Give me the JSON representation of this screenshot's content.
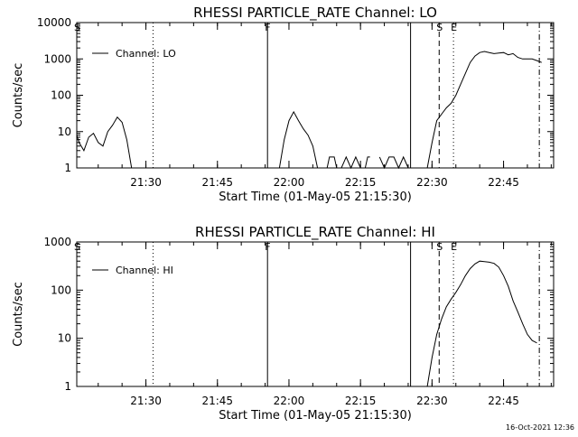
{
  "chart_data": [
    {
      "type": "line",
      "title": "RHESSI PARTICLE_RATE Channel: LO",
      "xlabel": "Start Time (01-May-05 21:15:30)",
      "ylabel": "Counts/sec",
      "y_scale": "log",
      "ylim": [
        1,
        10000
      ],
      "yticks": [
        1,
        10,
        100,
        1000,
        10000
      ],
      "ytick_labels": [
        "1",
        "10",
        "100",
        "1000",
        "10000"
      ],
      "xlim": [
        "21:15:30",
        "22:55:30"
      ],
      "xticks": [
        "21:30",
        "21:45",
        "22:00",
        "22:15",
        "22:30",
        "22:45"
      ],
      "grid": false,
      "legend": "top-left",
      "series": [
        {
          "name": "Channel: LO",
          "color": "#000000",
          "segments": [
            [
              [
                "21:15:30",
                8
              ],
              [
                "21:16:00",
                5
              ],
              [
                "21:17:00",
                3
              ],
              [
                "21:18:00",
                7
              ],
              [
                "21:19:00",
                9
              ],
              [
                "21:20:00",
                5
              ],
              [
                "21:21:00",
                4
              ],
              [
                "21:22:00",
                10
              ],
              [
                "21:23:00",
                15
              ],
              [
                "21:24:00",
                25
              ],
              [
                "21:25:00",
                18
              ],
              [
                "21:26:00",
                6
              ],
              [
                "21:27:00",
                1
              ]
            ],
            [
              [
                "21:58:00",
                1
              ],
              [
                "21:59:00",
                6
              ],
              [
                "22:00:00",
                20
              ],
              [
                "22:01:00",
                35
              ],
              [
                "22:02:00",
                20
              ],
              [
                "22:03:00",
                12
              ],
              [
                "22:04:00",
                8
              ],
              [
                "22:05:00",
                4
              ],
              [
                "22:06:00",
                1
              ]
            ],
            [
              [
                "22:08:00",
                1
              ],
              [
                "22:08:30",
                2
              ],
              [
                "22:09:30",
                2
              ],
              [
                "22:10:00",
                1
              ],
              [
                "22:11:00",
                1
              ],
              [
                "22:12:00",
                2
              ],
              [
                "22:13:00",
                1
              ],
              [
                "22:14:00",
                2
              ],
              [
                "22:15:00",
                1
              ],
              [
                "22:16:00",
                1
              ],
              [
                "22:16:30",
                2
              ],
              [
                "22:17:00",
                2
              ]
            ],
            [
              [
                "22:19:00",
                2
              ],
              [
                "22:20:00",
                1
              ],
              [
                "22:21:00",
                2
              ],
              [
                "22:22:00",
                2
              ],
              [
                "22:23:00",
                1
              ],
              [
                "22:24:00",
                2
              ],
              [
                "22:25:00",
                1
              ]
            ],
            [
              [
                "22:29:00",
                1
              ],
              [
                "22:30:00",
                5
              ],
              [
                "22:31:00",
                20
              ],
              [
                "22:32:00",
                30
              ],
              [
                "22:33:00",
                45
              ],
              [
                "22:34:00",
                60
              ],
              [
                "22:35:00",
                100
              ],
              [
                "22:36:00",
                200
              ],
              [
                "22:37:00",
                400
              ],
              [
                "22:38:00",
                800
              ],
              [
                "22:39:00",
                1200
              ],
              [
                "22:40:00",
                1500
              ],
              [
                "22:41:00",
                1600
              ],
              [
                "22:42:00",
                1500
              ],
              [
                "22:43:00",
                1400
              ],
              [
                "22:44:00",
                1450
              ],
              [
                "22:45:00",
                1500
              ],
              [
                "22:46:00",
                1300
              ],
              [
                "22:47:00",
                1400
              ],
              [
                "22:48:00",
                1100
              ],
              [
                "22:49:00",
                1000
              ],
              [
                "22:50:00",
                1000
              ],
              [
                "22:51:00",
                1000
              ],
              [
                "22:52:00",
                900
              ],
              [
                "22:53:00",
                800
              ]
            ]
          ]
        }
      ],
      "markers": [
        {
          "label": "S",
          "time": "21:15:30",
          "style": "solid"
        },
        {
          "label": "",
          "time": "21:31:30",
          "style": "dotted"
        },
        {
          "label": "F",
          "time": "21:55:30",
          "style": "solid"
        },
        {
          "label": "",
          "time": "22:25:30",
          "style": "solid"
        },
        {
          "label": "S",
          "time": "22:31:30",
          "style": "dashed"
        },
        {
          "label": "E",
          "time": "22:34:30",
          "style": "dotted"
        },
        {
          "label": "",
          "time": "22:52:30",
          "style": "dashdot"
        }
      ]
    },
    {
      "type": "line",
      "title": "RHESSI PARTICLE_RATE Channel: HI",
      "xlabel": "Start Time (01-May-05 21:15:30)",
      "ylabel": "Counts/sec",
      "y_scale": "log",
      "ylim": [
        1,
        1000
      ],
      "yticks": [
        1,
        10,
        100,
        1000
      ],
      "ytick_labels": [
        "1",
        "10",
        "100",
        "1000"
      ],
      "xlim": [
        "21:15:30",
        "22:55:30"
      ],
      "xticks": [
        "21:30",
        "21:45",
        "22:00",
        "22:15",
        "22:30",
        "22:45"
      ],
      "grid": false,
      "legend": "top-left",
      "series": [
        {
          "name": "Channel: HI",
          "color": "#000000",
          "segments": [
            [
              [
                "22:29:00",
                1
              ],
              [
                "22:30:00",
                4
              ],
              [
                "22:31:00",
                12
              ],
              [
                "22:32:00",
                25
              ],
              [
                "22:33:00",
                45
              ],
              [
                "22:34:00",
                65
              ],
              [
                "22:35:00",
                90
              ],
              [
                "22:36:00",
                130
              ],
              [
                "22:37:00",
                200
              ],
              [
                "22:38:00",
                280
              ],
              [
                "22:39:00",
                350
              ],
              [
                "22:40:00",
                400
              ],
              [
                "22:41:00",
                390
              ],
              [
                "22:42:00",
                380
              ],
              [
                "22:43:00",
                360
              ],
              [
                "22:44:00",
                300
              ],
              [
                "22:45:00",
                200
              ],
              [
                "22:46:00",
                120
              ],
              [
                "22:47:00",
                60
              ],
              [
                "22:48:00",
                35
              ],
              [
                "22:49:00",
                20
              ],
              [
                "22:50:00",
                12
              ],
              [
                "22:51:00",
                9
              ],
              [
                "22:52:00",
                8
              ]
            ]
          ]
        }
      ],
      "markers": [
        {
          "label": "S",
          "time": "21:15:30",
          "style": "solid"
        },
        {
          "label": "",
          "time": "21:31:30",
          "style": "dotted"
        },
        {
          "label": "F",
          "time": "21:55:30",
          "style": "solid"
        },
        {
          "label": "",
          "time": "22:25:30",
          "style": "solid"
        },
        {
          "label": "S",
          "time": "22:31:30",
          "style": "dashed"
        },
        {
          "label": "E",
          "time": "22:34:30",
          "style": "dotted"
        },
        {
          "label": "",
          "time": "22:52:30",
          "style": "dashdot"
        }
      ]
    }
  ],
  "footer": {
    "timestamp": "16-Oct-2021 12:36"
  }
}
